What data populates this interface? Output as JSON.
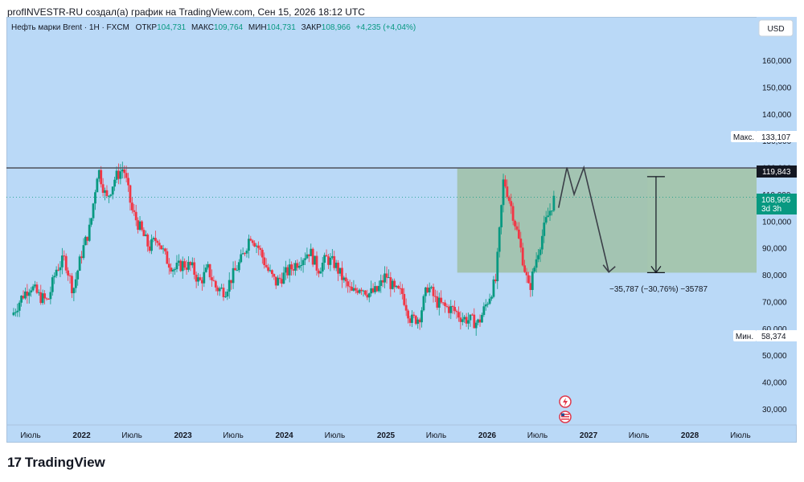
{
  "header": {
    "caption": "profINVESTR-RU создал(а) график на TradingView.com, Сен 15, 2026 18:12 UTC"
  },
  "brand": {
    "logo": "17",
    "name": "TradingView"
  },
  "legend": {
    "symbol": "Нефть марки Brent · 1Н · FXCM",
    "open_label": "ОТКР",
    "open_value": "104,731",
    "high_label": "МАКС",
    "high_value": "109,764",
    "low_label": "МИН",
    "low_value": "104,731",
    "close_label": "ЗАКР",
    "close_value": "108,966",
    "change": "+4,235 (+4,04%)"
  },
  "currency_button": "USD",
  "price_badges": {
    "max_label": "Макс.",
    "max_value": "133,107",
    "level_value": "119,843",
    "last_value": "108,966",
    "countdown": "3d 3h",
    "min_label": "Мин.",
    "min_value": "58,374"
  },
  "measure_label": "−35,787 (−30,76%) −35787",
  "colors": {
    "up": "#089981",
    "down": "#f23645",
    "background": "#bad9f7",
    "zone": "#9fbfa6",
    "level": "#555a66",
    "last": "#089981"
  },
  "icons": [
    "lightning-icon",
    "us-flag-icon"
  ],
  "chart_data": {
    "type": "candlestick",
    "symbol": "Нефть марки Brent",
    "y_axis": {
      "ticks": [
        "160,000",
        "150,000",
        "140,000",
        "130,000",
        "120,000",
        "110,000",
        "100,000",
        "90,000",
        "80,000",
        "70,000",
        "60,000",
        "50,000",
        "40,000",
        "30,000"
      ],
      "range": [
        24,
        170
      ]
    },
    "x_axis": {
      "ticks": [
        "Июль",
        "2022",
        "Июль",
        "2023",
        "Июль",
        "2024",
        "Июль",
        "2025",
        "Июль",
        "2026",
        "Июль",
        "2027",
        "Июль",
        "2028",
        "Июль"
      ]
    },
    "close_path": [
      [
        "2021-05-01",
        66
      ],
      [
        "2021-06-01",
        72
      ],
      [
        "2021-07-01",
        76
      ],
      [
        "2021-08-01",
        72
      ],
      [
        "2021-09-01",
        70
      ],
      [
        "2021-10-01",
        82
      ],
      [
        "2021-11-01",
        86
      ],
      [
        "2021-12-01",
        74
      ],
      [
        "2022-01-01",
        88
      ],
      [
        "2022-02-01",
        98
      ],
      [
        "2022-03-01",
        120
      ],
      [
        "2022-04-01",
        108
      ],
      [
        "2022-05-01",
        116
      ],
      [
        "2022-06-01",
        120
      ],
      [
        "2022-07-01",
        104
      ],
      [
        "2022-08-01",
        97
      ],
      [
        "2022-09-01",
        90
      ],
      [
        "2022-10-01",
        94
      ],
      [
        "2022-11-01",
        86
      ],
      [
        "2022-12-01",
        82
      ],
      [
        "2023-01-01",
        84
      ],
      [
        "2023-02-01",
        83
      ],
      [
        "2023-03-01",
        77
      ],
      [
        "2023-04-01",
        82
      ],
      [
        "2023-05-01",
        75
      ],
      [
        "2023-06-01",
        74
      ],
      [
        "2023-07-01",
        80
      ],
      [
        "2023-08-01",
        86
      ],
      [
        "2023-09-01",
        95
      ],
      [
        "2023-10-01",
        90
      ],
      [
        "2023-11-01",
        82
      ],
      [
        "2023-12-01",
        77
      ],
      [
        "2024-01-01",
        80
      ],
      [
        "2024-02-01",
        83
      ],
      [
        "2024-03-01",
        86
      ],
      [
        "2024-04-01",
        89
      ],
      [
        "2024-05-01",
        82
      ],
      [
        "2024-06-01",
        86
      ],
      [
        "2024-07-01",
        84
      ],
      [
        "2024-08-01",
        78
      ],
      [
        "2024-09-01",
        73
      ],
      [
        "2024-10-01",
        76
      ],
      [
        "2024-11-01",
        73
      ],
      [
        "2024-12-01",
        74
      ],
      [
        "2025-01-01",
        80
      ],
      [
        "2025-02-01",
        74
      ],
      [
        "2025-03-01",
        73
      ],
      [
        "2025-04-01",
        63
      ],
      [
        "2025-05-01",
        64
      ],
      [
        "2025-06-01",
        76
      ],
      [
        "2025-07-01",
        70
      ],
      [
        "2025-08-01",
        68
      ],
      [
        "2025-09-01",
        67
      ],
      [
        "2025-10-01",
        64
      ],
      [
        "2025-11-01",
        63
      ],
      [
        "2025-12-01",
        62
      ],
      [
        "2026-01-01",
        70
      ],
      [
        "2026-02-01",
        78
      ],
      [
        "2026-03-01",
        116
      ],
      [
        "2026-04-01",
        104
      ],
      [
        "2026-05-01",
        90
      ],
      [
        "2026-06-01",
        74
      ],
      [
        "2026-07-01",
        88
      ],
      [
        "2026-08-01",
        100
      ],
      [
        "2026-09-01",
        108.966
      ]
    ],
    "max": 133.107,
    "min": 58.374,
    "horizontal_level": 119.843,
    "last_price": 108.966,
    "zone": {
      "top": 119.843,
      "bottom": 80.8
    },
    "projection_path": [
      [
        "2026-09-15",
        105
      ],
      [
        "2026-10-15",
        120
      ],
      [
        "2026-11-10",
        110
      ],
      [
        "2026-12-15",
        120
      ],
      [
        "2027-03-15",
        81
      ]
    ],
    "measure": {
      "from": 116.6,
      "to": 80.8,
      "change": "−35,787 (−30,76%) −35787"
    }
  }
}
